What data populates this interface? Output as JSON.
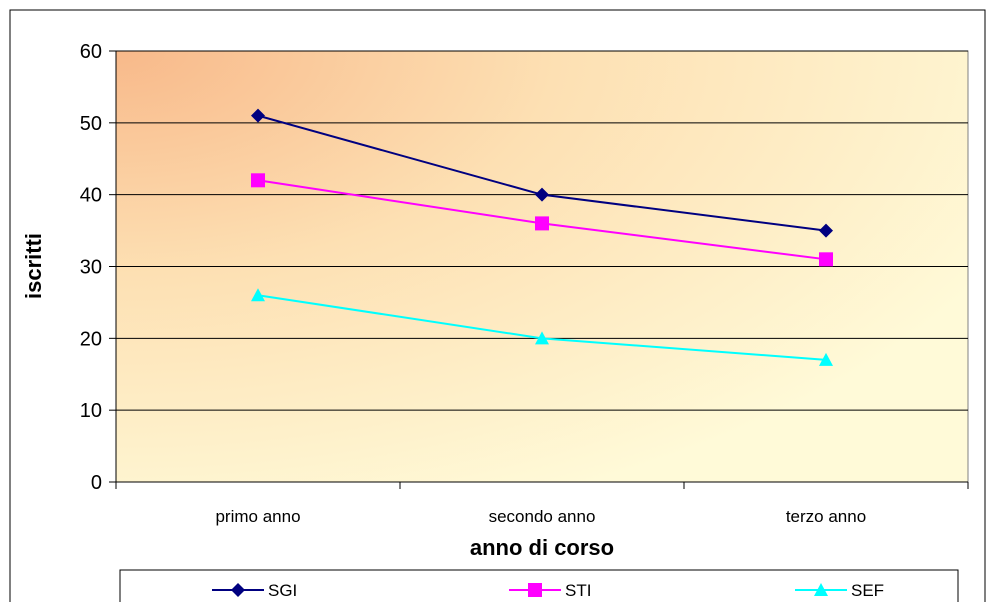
{
  "chart_data": {
    "type": "line",
    "title": "",
    "xlabel": "anno di corso",
    "ylabel": "iscritti",
    "ylim": [
      0,
      60
    ],
    "yticks": [
      "0",
      "10",
      "20",
      "30",
      "40",
      "50",
      "60"
    ],
    "categories": [
      "primo anno",
      "secondo anno",
      "terzo anno"
    ],
    "series": [
      {
        "name": "SGI",
        "values": [
          51,
          40,
          35
        ],
        "color": "#000080",
        "marker": "diamond"
      },
      {
        "name": "STI",
        "values": [
          42,
          36,
          31
        ],
        "color": "#ff00ff",
        "marker": "square"
      },
      {
        "name": "SEF",
        "values": [
          26,
          20,
          17
        ],
        "color": "#00ffff",
        "marker": "triangle"
      }
    ],
    "grid": true,
    "legend_position": "bottom",
    "plot_background": "gradient orange to light yellow"
  }
}
